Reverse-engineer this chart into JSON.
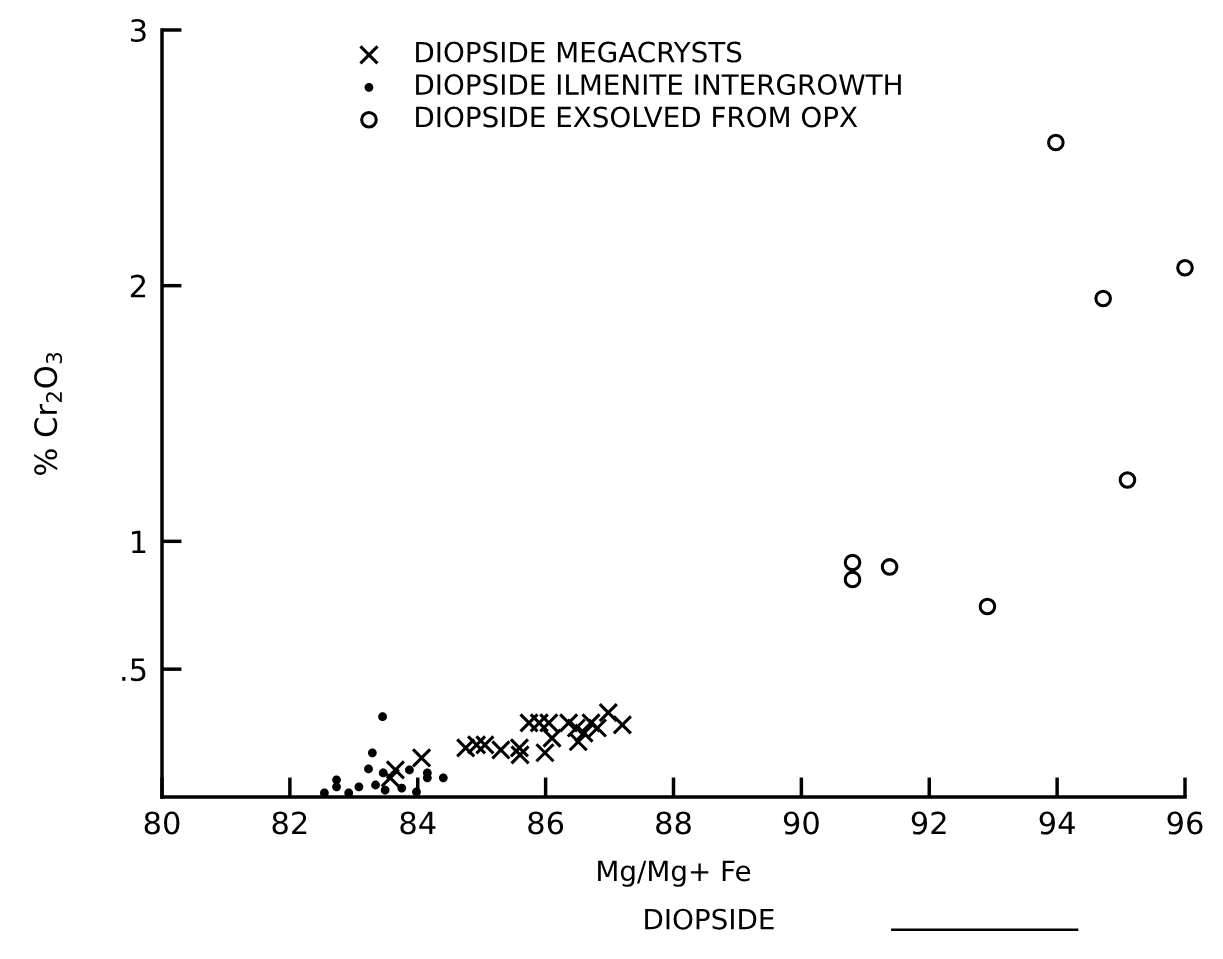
{
  "chart_data": {
    "type": "scatter",
    "title": "DIOPSIDE",
    "xlabel": "Mg/Mg+ Fe",
    "ylabel": "% Cr$_{2}$O$_{3}$",
    "xlim": [
      80,
      96
    ],
    "xticks": [
      80,
      82,
      84,
      86,
      88,
      90,
      92,
      94,
      96
    ],
    "ylim": [
      0,
      3
    ],
    "yticks": [
      {
        "value": 0.5,
        "label": ".5"
      },
      1,
      2,
      3
    ],
    "grid": false,
    "legend": "top",
    "series": [
      {
        "name": "DIOPSIDE MEGACRYSTS",
        "color": "#000000",
        "marker": "cross",
        "x": [
          83.65,
          84.06,
          83.57,
          84.75,
          84.92,
          85.05,
          85.3,
          85.59,
          85.6,
          85.74,
          85.9,
          86.05,
          85.99,
          86.1,
          86.36,
          86.48,
          86.51,
          86.6,
          86.71,
          86.81,
          86.98,
          87.2
        ],
        "values": [
          0.106,
          0.153,
          0.075,
          0.192,
          0.204,
          0.204,
          0.184,
          0.192,
          0.165,
          0.29,
          0.29,
          0.29,
          0.173,
          0.23,
          0.29,
          0.27,
          0.216,
          0.25,
          0.29,
          0.27,
          0.33,
          0.282
        ]
      },
      {
        "name": "DIOPSIDE ILMENITE INTERGROWTH",
        "color": "#000000",
        "marker": "dot",
        "x": [
          83.45,
          83.29,
          83.23,
          83.46,
          82.73,
          82.73,
          82.54,
          82.92,
          83.08,
          83.34,
          83.49,
          83.75,
          83.98,
          83.87,
          84.15,
          84.15,
          84.4
        ],
        "values": [
          0.314,
          0.173,
          0.11,
          0.094,
          0.067,
          0.04,
          0.016,
          0.016,
          0.04,
          0.047,
          0.027,
          0.035,
          0.02,
          0.106,
          0.094,
          0.075,
          0.075
        ]
      },
      {
        "name": "DIOPSIDE EXSOLVED FROM OPX",
        "color": "#000000",
        "marker": "circle",
        "x": [
          93.98,
          94.72,
          96.0,
          95.1,
          92.91,
          91.38,
          90.8,
          90.8
        ],
        "values": [
          2.56,
          1.95,
          2.07,
          1.24,
          0.745,
          0.9,
          0.917,
          0.851
        ]
      }
    ]
  }
}
